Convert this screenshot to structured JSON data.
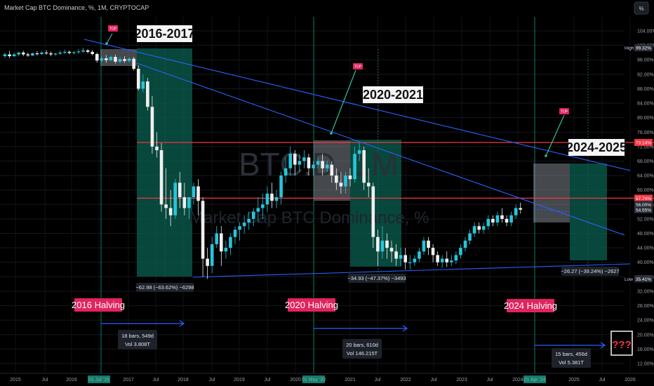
{
  "chart_title": "Market Cap BTC Dominance, %, 1M, CRYPTOCAP",
  "watermark": {
    "symbol": "BTC.D, 1M",
    "name": "Market Cap BTC Dominance, %"
  },
  "top_right_button": "%",
  "colors": {
    "up": "#26c6da",
    "down": "#f0f0f0",
    "zone": "#0b5f4f",
    "resistance": "#f23645",
    "trend": "#2962ff",
    "halving": "#e0245e",
    "vline": "#0e7d6a"
  },
  "chart_data": {
    "type": "candlestick",
    "title": "Market Cap BTC Dominance, %, 1M, CRYPTOCAP",
    "ylim": [
      12,
      104
    ],
    "y_ticks": [
      "104.00%",
      "100.00%",
      "96.00%",
      "92.00%",
      "88.00%",
      "84.00%",
      "80.00%",
      "76.00%",
      "72.00%",
      "68.00%",
      "64.00%",
      "60.00%",
      "56.00%",
      "52.00%",
      "48.00%",
      "44.00%",
      "40.00%",
      "36.00%",
      "32.00%",
      "28.00%",
      "24.00%",
      "20.00%",
      "16.00%",
      "12.00%"
    ],
    "x_ticks": [
      "2015",
      "Jul",
      "2016",
      "01 Jul '16",
      "2017",
      "Jul",
      "2018",
      "Jul",
      "2019",
      "Jul",
      "2020",
      "01 May '20",
      "2021",
      "Jul",
      "2022",
      "Jul",
      "2023",
      "Jul",
      "2024",
      "01 Apr '24",
      "2025",
      "Jul",
      "2026"
    ],
    "price_labels": [
      {
        "text": "High",
        "value": "99.32%",
        "y": 99.32
      },
      {
        "text": "",
        "value": "73.14%",
        "y": 73.14
      },
      {
        "text": "",
        "value": "57.74%",
        "y": 57.74
      },
      {
        "text": "",
        "value": "56.00%",
        "y": 56.0
      },
      {
        "text": "",
        "value": "54.55%",
        "y": 54.55
      },
      {
        "text": "Low",
        "value": "35.41%",
        "y": 35.41
      }
    ],
    "horizontal_lines": [
      73.14,
      57.74
    ],
    "periods": [
      {
        "label": "2016-2017",
        "top_badge": "TOP",
        "measure": "−62.98 (−63.62%) −6298",
        "halving": "2016 Halving",
        "range_top": "18 bars, 549d",
        "range_bottom": "Vol 3.808T"
      },
      {
        "label": "2020-2021",
        "top_badge": "TOP",
        "measure": "−34.93 (−47.37%) −3493",
        "halving": "2020 Halving",
        "range_top": "20 bars, 610d",
        "range_bottom": "Vol 146.215T"
      },
      {
        "label": "2024-2025",
        "top_badge": "TOP",
        "measure": "−26.27 (−39.24%) −2627",
        "halving": "2024 Halving",
        "range_top": "15 bars, 456d",
        "range_bottom": "Vol 5.381T"
      }
    ],
    "question": "???",
    "candles": [
      {
        "o": 97,
        "h": 98,
        "c": 97.5,
        "l": 96.5
      },
      {
        "o": 97.5,
        "h": 98.5,
        "c": 97,
        "l": 96.5
      },
      {
        "o": 97,
        "h": 98,
        "c": 97.5,
        "l": 96.8
      },
      {
        "o": 97.5,
        "h": 98.2,
        "c": 98,
        "l": 97
      },
      {
        "o": 98,
        "h": 98.5,
        "c": 97.5,
        "l": 97
      },
      {
        "o": 97.5,
        "h": 98,
        "c": 97.2,
        "l": 96.8
      },
      {
        "o": 97.2,
        "h": 98,
        "c": 97.8,
        "l": 97
      },
      {
        "o": 97.8,
        "h": 98.4,
        "c": 97.6,
        "l": 97.2
      },
      {
        "o": 97.6,
        "h": 98.3,
        "c": 98,
        "l": 97.3
      },
      {
        "o": 98,
        "h": 98.7,
        "c": 97.8,
        "l": 97.4
      },
      {
        "o": 97.8,
        "h": 98.3,
        "c": 97.5,
        "l": 97
      },
      {
        "o": 97.5,
        "h": 98,
        "c": 97.7,
        "l": 97.1
      },
      {
        "o": 97.7,
        "h": 98.5,
        "c": 98,
        "l": 97.4
      },
      {
        "o": 98,
        "h": 98.8,
        "c": 98.2,
        "l": 97.6
      },
      {
        "o": 98.2,
        "h": 98.6,
        "c": 97.9,
        "l": 97.5
      },
      {
        "o": 97.9,
        "h": 98.4,
        "c": 98.1,
        "l": 97.5
      },
      {
        "o": 98.1,
        "h": 98.9,
        "c": 98.3,
        "l": 97.7
      },
      {
        "o": 98.3,
        "h": 99.32,
        "c": 98.6,
        "l": 97.9
      },
      {
        "o": 98.6,
        "h": 99,
        "c": 98.2,
        "l": 97.8
      },
      {
        "o": 98.2,
        "h": 98.7,
        "c": 97.6,
        "l": 97.2
      },
      {
        "o": 97.6,
        "h": 98,
        "c": 95.8,
        "l": 95.2
      },
      {
        "o": 95.8,
        "h": 97,
        "c": 96.4,
        "l": 95.3
      },
      {
        "o": 96.4,
        "h": 97.3,
        "c": 95.9,
        "l": 95.2
      },
      {
        "o": 95.9,
        "h": 97.1,
        "c": 96.8,
        "l": 95.6
      },
      {
        "o": 96.8,
        "h": 97.4,
        "c": 95.5,
        "l": 95
      },
      {
        "o": 95.5,
        "h": 96.8,
        "c": 96.2,
        "l": 95.1
      },
      {
        "o": 96.2,
        "h": 97,
        "c": 95.7,
        "l": 95.2
      },
      {
        "o": 95.7,
        "h": 96.6,
        "c": 96.3,
        "l": 95.3
      },
      {
        "o": 96.3,
        "h": 96.8,
        "c": 93.5,
        "l": 93
      },
      {
        "o": 93.5,
        "h": 94.5,
        "c": 88,
        "l": 87.5
      },
      {
        "o": 88,
        "h": 92,
        "c": 90,
        "l": 87
      },
      {
        "o": 90,
        "h": 91,
        "c": 83,
        "l": 82
      },
      {
        "o": 83,
        "h": 86,
        "c": 72,
        "l": 70
      },
      {
        "o": 72,
        "h": 76,
        "c": 71,
        "l": 69
      },
      {
        "o": 71,
        "h": 73,
        "c": 56,
        "l": 54
      },
      {
        "o": 56,
        "h": 66,
        "c": 55,
        "l": 52
      },
      {
        "o": 55,
        "h": 60,
        "c": 53,
        "l": 50
      },
      {
        "o": 53,
        "h": 63,
        "c": 62,
        "l": 52
      },
      {
        "o": 62,
        "h": 65,
        "c": 58,
        "l": 55
      },
      {
        "o": 58,
        "h": 62,
        "c": 55,
        "l": 53
      },
      {
        "o": 55,
        "h": 58,
        "c": 58,
        "l": 52
      },
      {
        "o": 58,
        "h": 62,
        "c": 61,
        "l": 56
      },
      {
        "o": 61,
        "h": 63,
        "c": 57,
        "l": 53
      },
      {
        "o": 57,
        "h": 58,
        "c": 41,
        "l": 36
      },
      {
        "o": 41,
        "h": 44,
        "c": 39,
        "l": 35.41
      },
      {
        "o": 39,
        "h": 47,
        "c": 45,
        "l": 37
      },
      {
        "o": 45,
        "h": 50,
        "c": 48,
        "l": 44
      },
      {
        "o": 48,
        "h": 50,
        "c": 43,
        "l": 39
      },
      {
        "o": 43,
        "h": 46,
        "c": 44,
        "l": 41
      },
      {
        "o": 44,
        "h": 48,
        "c": 47,
        "l": 42
      },
      {
        "o": 47,
        "h": 50,
        "c": 49,
        "l": 45
      },
      {
        "o": 49,
        "h": 51,
        "c": 50,
        "l": 46
      },
      {
        "o": 50,
        "h": 53,
        "c": 51,
        "l": 48
      },
      {
        "o": 51,
        "h": 54,
        "c": 52,
        "l": 49
      },
      {
        "o": 52,
        "h": 55,
        "c": 54,
        "l": 50
      },
      {
        "o": 54,
        "h": 58,
        "c": 55,
        "l": 51
      },
      {
        "o": 55,
        "h": 59,
        "c": 56,
        "l": 52
      },
      {
        "o": 56,
        "h": 61,
        "c": 59,
        "l": 54
      },
      {
        "o": 59,
        "h": 62,
        "c": 57,
        "l": 55
      },
      {
        "o": 57,
        "h": 60,
        "c": 58,
        "l": 55
      },
      {
        "o": 58,
        "h": 65,
        "c": 64,
        "l": 56
      },
      {
        "o": 64,
        "h": 69,
        "c": 66,
        "l": 62
      },
      {
        "o": 66,
        "h": 72,
        "c": 70,
        "l": 64
      },
      {
        "o": 70,
        "h": 71,
        "c": 67,
        "l": 64
      },
      {
        "o": 67,
        "h": 70,
        "c": 68,
        "l": 65
      },
      {
        "o": 68,
        "h": 71,
        "c": 69,
        "l": 66
      },
      {
        "o": 69,
        "h": 70,
        "c": 66,
        "l": 64
      },
      {
        "o": 66,
        "h": 68,
        "c": 67,
        "l": 64
      },
      {
        "o": 67,
        "h": 69,
        "c": 68,
        "l": 66
      },
      {
        "o": 68,
        "h": 70,
        "c": 66,
        "l": 64
      },
      {
        "o": 66,
        "h": 68,
        "c": 67,
        "l": 65
      },
      {
        "o": 67,
        "h": 68,
        "c": 64,
        "l": 62
      },
      {
        "o": 64,
        "h": 66,
        "c": 62,
        "l": 60
      },
      {
        "o": 62,
        "h": 65,
        "c": 61,
        "l": 59
      },
      {
        "o": 61,
        "h": 65,
        "c": 64,
        "l": 59
      },
      {
        "o": 64,
        "h": 66,
        "c": 63,
        "l": 61
      },
      {
        "o": 63,
        "h": 72,
        "c": 70,
        "l": 62
      },
      {
        "o": 70,
        "h": 73,
        "c": 71,
        "l": 68
      },
      {
        "o": 71,
        "h": 72,
        "c": 62,
        "l": 60
      },
      {
        "o": 62,
        "h": 66,
        "c": 61,
        "l": 58
      },
      {
        "o": 61,
        "h": 62,
        "c": 47,
        "l": 44
      },
      {
        "o": 47,
        "h": 49,
        "c": 43,
        "l": 39
      },
      {
        "o": 43,
        "h": 50,
        "c": 46,
        "l": 41
      },
      {
        "o": 46,
        "h": 48,
        "c": 44,
        "l": 41
      },
      {
        "o": 44,
        "h": 46,
        "c": 43,
        "l": 40
      },
      {
        "o": 43,
        "h": 45,
        "c": 41,
        "l": 39
      },
      {
        "o": 41,
        "h": 44,
        "c": 42,
        "l": 39
      },
      {
        "o": 42,
        "h": 44,
        "c": 40,
        "l": 38
      },
      {
        "o": 40,
        "h": 42,
        "c": 40,
        "l": 38
      },
      {
        "o": 40,
        "h": 42,
        "c": 41,
        "l": 39
      },
      {
        "o": 41,
        "h": 44,
        "c": 43,
        "l": 40
      },
      {
        "o": 43,
        "h": 47,
        "c": 46,
        "l": 42
      },
      {
        "o": 46,
        "h": 47,
        "c": 44,
        "l": 42
      },
      {
        "o": 44,
        "h": 45,
        "c": 42,
        "l": 40
      },
      {
        "o": 42,
        "h": 43,
        "c": 40,
        "l": 39
      },
      {
        "o": 40,
        "h": 42,
        "c": 41,
        "l": 38.5
      },
      {
        "o": 41,
        "h": 43,
        "c": 40,
        "l": 38.7
      },
      {
        "o": 40,
        "h": 42,
        "c": 40.5,
        "l": 39
      },
      {
        "o": 40.5,
        "h": 43,
        "c": 42,
        "l": 39.5
      },
      {
        "o": 42,
        "h": 45,
        "c": 44,
        "l": 41
      },
      {
        "o": 44,
        "h": 47,
        "c": 46,
        "l": 43
      },
      {
        "o": 46,
        "h": 49,
        "c": 48,
        "l": 45
      },
      {
        "o": 48,
        "h": 51,
        "c": 50,
        "l": 47
      },
      {
        "o": 50,
        "h": 51,
        "c": 49,
        "l": 48
      },
      {
        "o": 49,
        "h": 51,
        "c": 50,
        "l": 48
      },
      {
        "o": 50,
        "h": 53,
        "c": 52,
        "l": 49
      },
      {
        "o": 52,
        "h": 53,
        "c": 51,
        "l": 50
      },
      {
        "o": 51,
        "h": 54,
        "c": 53,
        "l": 50
      },
      {
        "o": 53,
        "h": 55,
        "c": 52,
        "l": 51
      },
      {
        "o": 52,
        "h": 53,
        "c": 51,
        "l": 50
      },
      {
        "o": 51,
        "h": 54,
        "c": 53,
        "l": 50
      },
      {
        "o": 53,
        "h": 56,
        "c": 55,
        "l": 52
      },
      {
        "o": 55,
        "h": 56.5,
        "c": 54.55,
        "l": 53.5
      }
    ]
  }
}
